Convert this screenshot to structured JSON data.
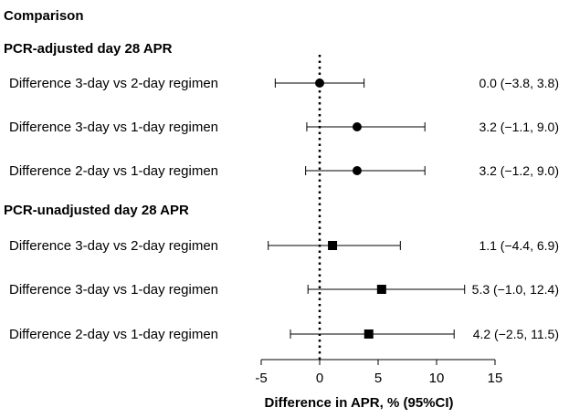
{
  "chart_data": {
    "type": "forest",
    "title": "Comparison",
    "xlabel": "Difference in APR, % (95%CI)",
    "xlim": [
      -5,
      15
    ],
    "xticks": [
      -5,
      0,
      5,
      10,
      15
    ],
    "reference_line": 0,
    "groups": [
      {
        "header": "PCR-adjusted day 28 APR",
        "marker": "circle",
        "rows": [
          {
            "label": "Difference 3-day vs 2-day regimen",
            "estimate": 0.0,
            "lower": -3.8,
            "upper": 3.8,
            "ci_text": "0.0 (−3.8, 3.8)"
          },
          {
            "label": "Difference 3-day vs 1-day regimen",
            "estimate": 3.2,
            "lower": -1.1,
            "upper": 9.0,
            "ci_text": "3.2 (−1.1, 9.0)"
          },
          {
            "label": "Difference 2-day vs 1-day regimen",
            "estimate": 3.2,
            "lower": -1.2,
            "upper": 9.0,
            "ci_text": "3.2 (−1.2, 9.0)"
          }
        ]
      },
      {
        "header": "PCR-unadjusted day 28 APR",
        "marker": "square",
        "rows": [
          {
            "label": "Difference 3-day vs 2-day regimen",
            "estimate": 1.1,
            "lower": -4.4,
            "upper": 6.9,
            "ci_text": "1.1 (−4.4, 6.9)"
          },
          {
            "label": "Difference 3-day vs 1-day regimen",
            "estimate": 5.3,
            "lower": -1.0,
            "upper": 12.4,
            "ci_text": "5.3 (−1.0, 12.4)"
          },
          {
            "label": "Difference 2-day vs 1-day regimen",
            "estimate": 4.2,
            "lower": -2.5,
            "upper": 11.5,
            "ci_text": "4.2 (−2.5, 11.5)"
          }
        ]
      }
    ]
  }
}
